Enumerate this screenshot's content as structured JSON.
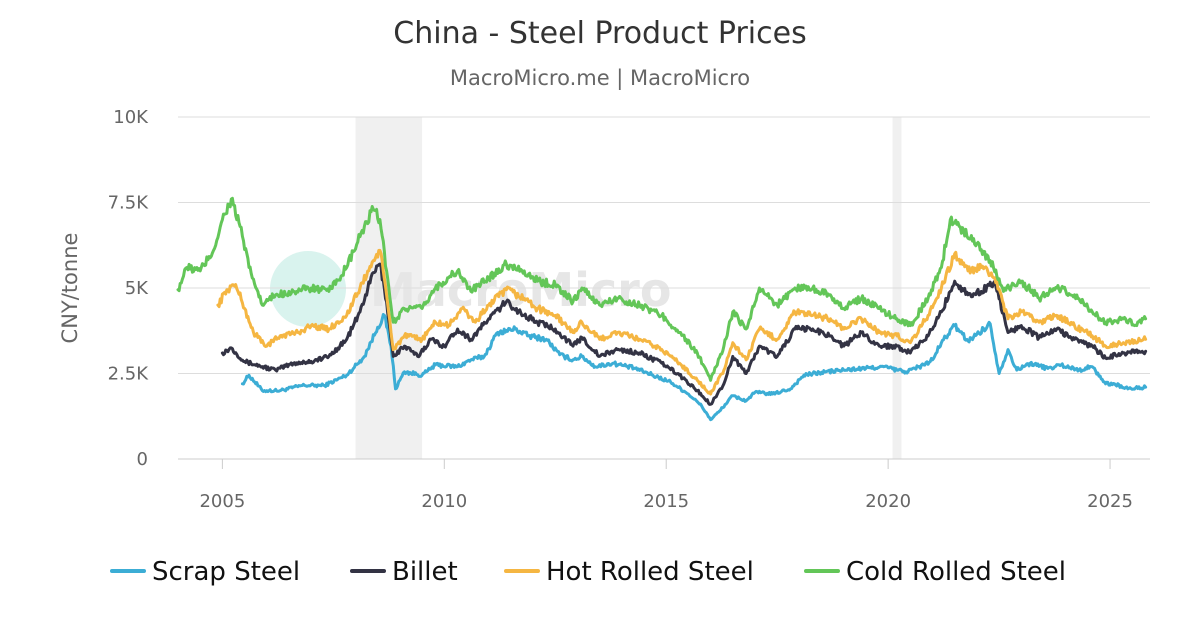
{
  "chart_data": {
    "type": "line",
    "title": "China - Steel Product Prices",
    "subtitle": "MacroMicro.me | MacroMicro",
    "xlabel": "",
    "ylabel": "CNY/tonne",
    "xlim": [
      2004.0,
      2025.9
    ],
    "ylim": [
      0,
      10000
    ],
    "x_ticks": [
      2005,
      2010,
      2015,
      2020,
      2025
    ],
    "y_ticks": [
      {
        "value": 0,
        "label": "0"
      },
      {
        "value": 2500,
        "label": "2.5K"
      },
      {
        "value": 5000,
        "label": "5K"
      },
      {
        "value": 7500,
        "label": "7.5K"
      },
      {
        "value": 10000,
        "label": "10K"
      }
    ],
    "recession_shading": [
      [
        2008.0,
        2009.5
      ],
      [
        2020.1,
        2020.3
      ]
    ],
    "legend_position": "bottom",
    "watermark": "MacroMicro",
    "series": [
      {
        "name": "Scrap Steel",
        "color": "#3cadd5",
        "points": [
          [
            2005.45,
            2200
          ],
          [
            2005.6,
            2450
          ],
          [
            2005.9,
            2000
          ],
          [
            2006.3,
            2000
          ],
          [
            2006.8,
            2150
          ],
          [
            2007.3,
            2150
          ],
          [
            2007.8,
            2450
          ],
          [
            2008.2,
            3000
          ],
          [
            2008.5,
            3850
          ],
          [
            2008.65,
            4200
          ],
          [
            2008.8,
            3300
          ],
          [
            2008.9,
            2050
          ],
          [
            2009.1,
            2550
          ],
          [
            2009.5,
            2450
          ],
          [
            2009.8,
            2750
          ],
          [
            2010.3,
            2700
          ],
          [
            2010.6,
            2900
          ],
          [
            2010.9,
            3000
          ],
          [
            2011.2,
            3700
          ],
          [
            2011.6,
            3800
          ],
          [
            2011.9,
            3600
          ],
          [
            2012.3,
            3500
          ],
          [
            2012.6,
            3050
          ],
          [
            2012.9,
            2900
          ],
          [
            2013.1,
            3000
          ],
          [
            2013.4,
            2700
          ],
          [
            2013.8,
            2800
          ],
          [
            2014.3,
            2650
          ],
          [
            2014.7,
            2450
          ],
          [
            2015.1,
            2250
          ],
          [
            2015.5,
            1900
          ],
          [
            2015.8,
            1550
          ],
          [
            2016.0,
            1150
          ],
          [
            2016.2,
            1400
          ],
          [
            2016.5,
            1850
          ],
          [
            2016.8,
            1700
          ],
          [
            2017.0,
            1950
          ],
          [
            2017.4,
            1900
          ],
          [
            2017.8,
            2050
          ],
          [
            2018.1,
            2450
          ],
          [
            2018.6,
            2550
          ],
          [
            2019.0,
            2600
          ],
          [
            2019.5,
            2650
          ],
          [
            2019.9,
            2700
          ],
          [
            2020.2,
            2600
          ],
          [
            2020.4,
            2550
          ],
          [
            2020.8,
            2750
          ],
          [
            2021.0,
            2900
          ],
          [
            2021.2,
            3400
          ],
          [
            2021.5,
            3900
          ],
          [
            2021.8,
            3450
          ],
          [
            2022.0,
            3650
          ],
          [
            2022.3,
            3950
          ],
          [
            2022.5,
            2500
          ],
          [
            2022.7,
            3200
          ],
          [
            2022.9,
            2600
          ],
          [
            2023.2,
            2800
          ],
          [
            2023.6,
            2650
          ],
          [
            2023.9,
            2750
          ],
          [
            2024.3,
            2600
          ],
          [
            2024.6,
            2700
          ],
          [
            2024.9,
            2200
          ],
          [
            2025.1,
            2200
          ],
          [
            2025.4,
            2050
          ],
          [
            2025.8,
            2100
          ]
        ]
      },
      {
        "name": "Billet",
        "color": "#333344",
        "points": [
          [
            2005.0,
            3100
          ],
          [
            2005.2,
            3250
          ],
          [
            2005.5,
            2850
          ],
          [
            2005.9,
            2700
          ],
          [
            2006.2,
            2600
          ],
          [
            2006.6,
            2800
          ],
          [
            2007.0,
            2850
          ],
          [
            2007.4,
            3000
          ],
          [
            2007.8,
            3500
          ],
          [
            2008.1,
            4300
          ],
          [
            2008.4,
            5450
          ],
          [
            2008.55,
            5700
          ],
          [
            2008.7,
            4600
          ],
          [
            2008.85,
            3000
          ],
          [
            2009.1,
            3300
          ],
          [
            2009.4,
            3000
          ],
          [
            2009.7,
            3500
          ],
          [
            2010.0,
            3300
          ],
          [
            2010.3,
            3800
          ],
          [
            2010.6,
            3500
          ],
          [
            2011.0,
            4100
          ],
          [
            2011.4,
            4600
          ],
          [
            2011.8,
            4200
          ],
          [
            2012.1,
            4000
          ],
          [
            2012.5,
            3800
          ],
          [
            2012.9,
            3300
          ],
          [
            2013.1,
            3550
          ],
          [
            2013.5,
            3000
          ],
          [
            2013.9,
            3200
          ],
          [
            2014.4,
            3100
          ],
          [
            2014.9,
            2800
          ],
          [
            2015.3,
            2450
          ],
          [
            2015.7,
            2000
          ],
          [
            2016.0,
            1600
          ],
          [
            2016.3,
            2200
          ],
          [
            2016.5,
            3000
          ],
          [
            2016.8,
            2500
          ],
          [
            2017.1,
            3300
          ],
          [
            2017.5,
            3000
          ],
          [
            2017.9,
            3800
          ],
          [
            2018.3,
            3800
          ],
          [
            2018.7,
            3600
          ],
          [
            2019.0,
            3300
          ],
          [
            2019.4,
            3700
          ],
          [
            2019.8,
            3300
          ],
          [
            2020.2,
            3300
          ],
          [
            2020.5,
            3100
          ],
          [
            2020.9,
            3600
          ],
          [
            2021.2,
            4300
          ],
          [
            2021.5,
            5200
          ],
          [
            2021.8,
            4800
          ],
          [
            2022.1,
            4900
          ],
          [
            2022.4,
            5200
          ],
          [
            2022.7,
            3700
          ],
          [
            2023.0,
            3900
          ],
          [
            2023.4,
            3550
          ],
          [
            2023.8,
            3800
          ],
          [
            2024.2,
            3500
          ],
          [
            2024.6,
            3300
          ],
          [
            2024.9,
            2950
          ],
          [
            2025.3,
            3100
          ],
          [
            2025.8,
            3150
          ]
        ]
      },
      {
        "name": "Hot Rolled Steel",
        "color": "#f5b642",
        "points": [
          [
            2004.9,
            4500
          ],
          [
            2005.1,
            4950
          ],
          [
            2005.3,
            5100
          ],
          [
            2005.5,
            4400
          ],
          [
            2005.7,
            3700
          ],
          [
            2006.0,
            3300
          ],
          [
            2006.3,
            3600
          ],
          [
            2006.7,
            3700
          ],
          [
            2007.0,
            3900
          ],
          [
            2007.4,
            3800
          ],
          [
            2007.8,
            4200
          ],
          [
            2008.1,
            5000
          ],
          [
            2008.4,
            5800
          ],
          [
            2008.55,
            6100
          ],
          [
            2008.7,
            4800
          ],
          [
            2008.85,
            3200
          ],
          [
            2009.1,
            3600
          ],
          [
            2009.5,
            3500
          ],
          [
            2009.8,
            4000
          ],
          [
            2010.1,
            3900
          ],
          [
            2010.4,
            4400
          ],
          [
            2010.7,
            4000
          ],
          [
            2011.0,
            4500
          ],
          [
            2011.4,
            4950
          ],
          [
            2011.8,
            4700
          ],
          [
            2012.1,
            4400
          ],
          [
            2012.5,
            4200
          ],
          [
            2012.9,
            3700
          ],
          [
            2013.1,
            4000
          ],
          [
            2013.5,
            3500
          ],
          [
            2013.9,
            3700
          ],
          [
            2014.4,
            3500
          ],
          [
            2014.9,
            3200
          ],
          [
            2015.3,
            2800
          ],
          [
            2015.7,
            2300
          ],
          [
            2016.0,
            1900
          ],
          [
            2016.3,
            2600
          ],
          [
            2016.5,
            3400
          ],
          [
            2016.8,
            2900
          ],
          [
            2017.1,
            3800
          ],
          [
            2017.5,
            3500
          ],
          [
            2017.9,
            4300
          ],
          [
            2018.3,
            4200
          ],
          [
            2018.7,
            4100
          ],
          [
            2019.0,
            3800
          ],
          [
            2019.4,
            4100
          ],
          [
            2019.8,
            3700
          ],
          [
            2020.2,
            3600
          ],
          [
            2020.5,
            3400
          ],
          [
            2020.9,
            4200
          ],
          [
            2021.2,
            5000
          ],
          [
            2021.5,
            6000
          ],
          [
            2021.8,
            5500
          ],
          [
            2022.1,
            5600
          ],
          [
            2022.4,
            5300
          ],
          [
            2022.7,
            4100
          ],
          [
            2023.0,
            4300
          ],
          [
            2023.4,
            4000
          ],
          [
            2023.8,
            4200
          ],
          [
            2024.2,
            3900
          ],
          [
            2024.6,
            3600
          ],
          [
            2024.9,
            3300
          ],
          [
            2025.3,
            3400
          ],
          [
            2025.8,
            3500
          ]
        ]
      },
      {
        "name": "Cold Rolled Steel",
        "color": "#63c658",
        "points": [
          [
            2004.0,
            4950
          ],
          [
            2004.2,
            5600
          ],
          [
            2004.5,
            5500
          ],
          [
            2004.8,
            6100
          ],
          [
            2005.0,
            7000
          ],
          [
            2005.2,
            7600
          ],
          [
            2005.4,
            6800
          ],
          [
            2005.6,
            5600
          ],
          [
            2005.9,
            4500
          ],
          [
            2006.2,
            4800
          ],
          [
            2006.6,
            4900
          ],
          [
            2007.0,
            5000
          ],
          [
            2007.4,
            4900
          ],
          [
            2007.8,
            5600
          ],
          [
            2008.1,
            6500
          ],
          [
            2008.4,
            7300
          ],
          [
            2008.55,
            7000
          ],
          [
            2008.7,
            5500
          ],
          [
            2008.85,
            4000
          ],
          [
            2009.1,
            4400
          ],
          [
            2009.5,
            4400
          ],
          [
            2009.8,
            5000
          ],
          [
            2010.1,
            5300
          ],
          [
            2010.3,
            5500
          ],
          [
            2010.6,
            4900
          ],
          [
            2011.0,
            5300
          ],
          [
            2011.4,
            5700
          ],
          [
            2011.8,
            5500
          ],
          [
            2012.1,
            5200
          ],
          [
            2012.5,
            5100
          ],
          [
            2012.9,
            4600
          ],
          [
            2013.1,
            5000
          ],
          [
            2013.5,
            4500
          ],
          [
            2013.9,
            4700
          ],
          [
            2014.4,
            4500
          ],
          [
            2014.9,
            4200
          ],
          [
            2015.3,
            3700
          ],
          [
            2015.7,
            3100
          ],
          [
            2016.0,
            2300
          ],
          [
            2016.3,
            3300
          ],
          [
            2016.5,
            4300
          ],
          [
            2016.8,
            3800
          ],
          [
            2017.1,
            5000
          ],
          [
            2017.5,
            4500
          ],
          [
            2017.9,
            5000
          ],
          [
            2018.3,
            5000
          ],
          [
            2018.7,
            4800
          ],
          [
            2019.0,
            4400
          ],
          [
            2019.4,
            4700
          ],
          [
            2019.8,
            4400
          ],
          [
            2020.2,
            4100
          ],
          [
            2020.5,
            3900
          ],
          [
            2020.9,
            4700
          ],
          [
            2021.2,
            5600
          ],
          [
            2021.4,
            7000
          ],
          [
            2021.7,
            6700
          ],
          [
            2022.0,
            6300
          ],
          [
            2022.3,
            5800
          ],
          [
            2022.6,
            4900
          ],
          [
            2023.0,
            5200
          ],
          [
            2023.4,
            4700
          ],
          [
            2023.8,
            5000
          ],
          [
            2024.2,
            4800
          ],
          [
            2024.6,
            4300
          ],
          [
            2024.9,
            4000
          ],
          [
            2025.3,
            4100
          ],
          [
            2025.6,
            3900
          ],
          [
            2025.8,
            4100
          ]
        ]
      }
    ]
  }
}
